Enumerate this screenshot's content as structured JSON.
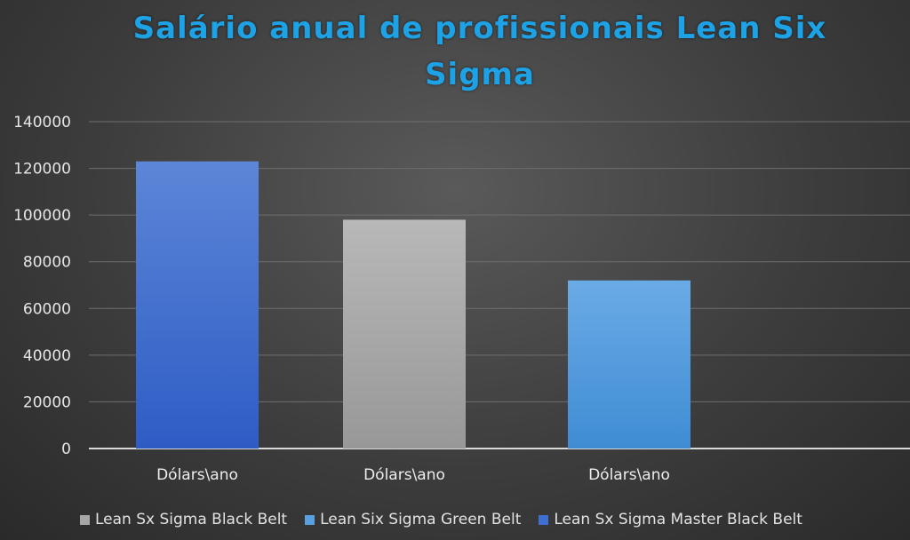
{
  "chart_data": {
    "type": "bar",
    "title": "Salário anual de profissionais Lean Six Sigma",
    "title_lines": [
      "Salário anual de profissionais Lean Six",
      "Sigma"
    ],
    "categories": [
      "Dólars\\ano",
      "Dólars\\ano",
      "Dólars\\ano"
    ],
    "bars": [
      {
        "series": "Lean Sx Sigma Master Black Belt",
        "category": "Dólars\\ano",
        "value": 123000,
        "color": "#3f6fd0"
      },
      {
        "series": "Lean Sx Sigma Black Belt",
        "category": "Dólars\\ano",
        "value": 98000,
        "color": "#a6a6a6"
      },
      {
        "series": "Lean Six Sigma Green Belt",
        "category": "Dólars\\ano",
        "value": 72000,
        "color": "#5aa0e0"
      }
    ],
    "yticks": [
      0,
      20000,
      40000,
      60000,
      80000,
      100000,
      120000,
      140000
    ],
    "ylim": [
      0,
      140000
    ],
    "grid": true,
    "legend_position": "bottom",
    "legend": [
      {
        "label": "Lean Sx Sigma Black Belt",
        "color": "#a6a6a6"
      },
      {
        "label": "Lean Six Sigma Green Belt",
        "color": "#5aa0e0"
      },
      {
        "label": "Lean Sx Sigma Master Black Belt",
        "color": "#3f6fd0"
      }
    ]
  }
}
